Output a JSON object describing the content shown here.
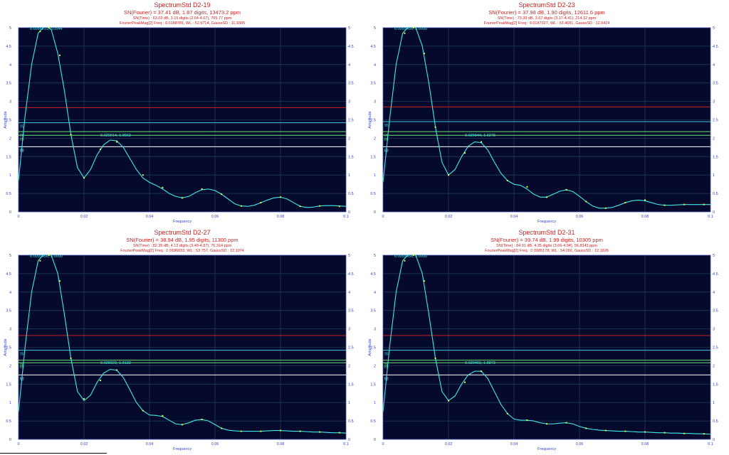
{
  "colors": {
    "plot_bg": "#050a2c",
    "grid": "#1f3a5a",
    "curve": "#40e8e8",
    "marker": "#d8ff40",
    "red_line": "#cc2222",
    "cyan_line": "#40c8e0",
    "green_line": "#70e070",
    "white_line": "#ffffff",
    "axis_text": "#3344cc",
    "title_text": "#cc2222"
  },
  "chart_data": [
    {
      "type": "line",
      "title": "SpectrumStd D2-19",
      "subtitle1": "SN(Fourier) = 37.41 dB, 1.87 digits, 13473.2 ppm",
      "subtitle2": "SN(Time) : 63.03 dB, 3.15 digits (2.64-4.07), 705.77 ppm",
      "subtitle3": "FourierPeakMag[2] Freq : 0.0188781, WL : 52.9714, GaussSD : 11.9305",
      "xlabel": "Frequency",
      "ylabel": "Amplitude",
      "xlim": [
        0,
        0.1
      ],
      "ylim": [
        0,
        5
      ],
      "x_ticks": [
        "0",
        "0.02",
        "0.04",
        "0.06",
        "0.08",
        "0.1"
      ],
      "y_ticks": [
        "0",
        "0.5",
        "1",
        "1.5",
        "2",
        "2.5",
        "3",
        "3.5",
        "4",
        "4.5",
        "5"
      ],
      "peak_label": "0.0066211, 5.0544",
      "second_peak_label": "0.029014, 1.9563",
      "hlines": [
        {
          "y": 2.83,
          "color": "red",
          "tag": ""
        },
        {
          "y": 2.42,
          "color": "cyan",
          "tag": "95"
        },
        {
          "y": 2.18,
          "color": "green",
          "tag": "90"
        },
        {
          "y": 2.08,
          "color": "green",
          "tag": "85"
        },
        {
          "y": 1.77,
          "color": "white",
          "tag": "50"
        }
      ],
      "x": [
        0,
        0.002,
        0.004,
        0.006,
        0.008,
        0.01,
        0.012,
        0.014,
        0.016,
        0.018,
        0.02,
        0.022,
        0.024,
        0.026,
        0.028,
        0.03,
        0.032,
        0.034,
        0.036,
        0.038,
        0.04,
        0.042,
        0.044,
        0.046,
        0.048,
        0.05,
        0.052,
        0.054,
        0.056,
        0.058,
        0.06,
        0.062,
        0.064,
        0.066,
        0.068,
        0.07,
        0.072,
        0.074,
        0.076,
        0.078,
        0.08,
        0.082,
        0.084,
        0.086,
        0.088,
        0.09,
        0.092,
        0.094,
        0.096,
        0.098,
        0.1
      ],
      "y": [
        0.85,
        2.6,
        4.0,
        4.85,
        5.05,
        4.95,
        4.3,
        3.3,
        2.1,
        1.2,
        0.92,
        1.15,
        1.55,
        1.82,
        1.95,
        1.93,
        1.75,
        1.45,
        1.15,
        0.92,
        0.8,
        0.72,
        0.62,
        0.5,
        0.42,
        0.38,
        0.42,
        0.52,
        0.6,
        0.62,
        0.58,
        0.48,
        0.35,
        0.22,
        0.16,
        0.15,
        0.18,
        0.25,
        0.32,
        0.38,
        0.4,
        0.35,
        0.25,
        0.15,
        0.12,
        0.13,
        0.16,
        0.17,
        0.17,
        0.16,
        0.15
      ],
      "markers_x": [
        0.0066,
        0.0093,
        0.0126,
        0.016,
        0.02,
        0.025,
        0.03,
        0.038,
        0.044,
        0.05,
        0.056,
        0.062,
        0.068,
        0.074,
        0.08,
        0.086,
        0.092,
        0.098
      ],
      "markers_y": [
        4.9,
        5.0,
        4.25,
        2.1,
        0.92,
        1.7,
        1.9,
        1.0,
        0.66,
        0.38,
        0.62,
        0.48,
        0.16,
        0.25,
        0.4,
        0.15,
        0.16,
        0.15
      ]
    },
    {
      "type": "line",
      "title": "SpectrumStd D2-23",
      "subtitle1": "SN(Fourier) = 37.98 dB, 1.90 digits, 12611.6 ppm",
      "subtitle2": "SN(Time) : 73.39 dB, 3.67 digits (3.17-4.41), 214.12 ppm",
      "subtitle3": "FourierPeakMag[2] Freq : 0.0187027, WL : 53.4681, GaussSD : 12.0424",
      "xlabel": "Frequency",
      "ylabel": "Amplitude",
      "xlim": [
        0,
        0.1
      ],
      "ylim": [
        0,
        5
      ],
      "x_ticks": [
        "0",
        "0.02",
        "0.04",
        "0.06",
        "0.08",
        "0.1"
      ],
      "y_ticks": [
        "0",
        "0.5",
        "1",
        "1.5",
        "2",
        "2.5",
        "3",
        "3.5",
        "4",
        "4.5",
        "5"
      ],
      "peak_label": "0.0093456, 5.0000",
      "second_peak_label": "0.029844, 1.9278",
      "hlines": [
        {
          "y": 2.85,
          "color": "red",
          "tag": ""
        },
        {
          "y": 2.45,
          "color": "cyan",
          "tag": "95"
        },
        {
          "y": 2.18,
          "color": "green",
          "tag": "90"
        },
        {
          "y": 2.08,
          "color": "green",
          "tag": "85"
        },
        {
          "y": 1.77,
          "color": "white",
          "tag": "50"
        }
      ],
      "x": [
        0,
        0.002,
        0.004,
        0.006,
        0.008,
        0.01,
        0.012,
        0.014,
        0.016,
        0.018,
        0.02,
        0.022,
        0.024,
        0.026,
        0.028,
        0.03,
        0.032,
        0.034,
        0.036,
        0.038,
        0.04,
        0.042,
        0.044,
        0.046,
        0.048,
        0.05,
        0.052,
        0.054,
        0.056,
        0.058,
        0.06,
        0.062,
        0.064,
        0.066,
        0.068,
        0.07,
        0.072,
        0.074,
        0.076,
        0.078,
        0.08,
        0.082,
        0.084,
        0.086,
        0.088,
        0.09,
        0.092,
        0.094,
        0.096,
        0.098,
        0.1
      ],
      "y": [
        0.8,
        2.5,
        4.0,
        4.85,
        5.05,
        5.0,
        4.5,
        3.5,
        2.3,
        1.35,
        1.0,
        1.15,
        1.5,
        1.78,
        1.9,
        1.88,
        1.68,
        1.35,
        1.05,
        0.85,
        0.75,
        0.72,
        0.62,
        0.48,
        0.4,
        0.4,
        0.48,
        0.56,
        0.6,
        0.55,
        0.42,
        0.28,
        0.16,
        0.1,
        0.1,
        0.12,
        0.18,
        0.25,
        0.3,
        0.32,
        0.3,
        0.25,
        0.2,
        0.18,
        0.18,
        0.19,
        0.2,
        0.2,
        0.2,
        0.2,
        0.2
      ],
      "markers_x": [
        0.0066,
        0.0093,
        0.0126,
        0.016,
        0.02,
        0.025,
        0.03,
        0.038,
        0.044,
        0.05,
        0.056,
        0.062,
        0.068,
        0.074,
        0.08,
        0.086,
        0.092,
        0.098
      ],
      "markers_y": [
        4.85,
        5.0,
        4.3,
        2.3,
        1.0,
        1.6,
        1.9,
        0.85,
        0.68,
        0.4,
        0.6,
        0.28,
        0.1,
        0.25,
        0.32,
        0.18,
        0.2,
        0.2
      ]
    },
    {
      "type": "line",
      "title": "SpectrumStd D2-27",
      "subtitle1": "SN(Fourier) = 38.94 dB, 1.95 digits, 11300 ppm",
      "subtitle2": "SN(Time) : 82.35 dB, 4.12 digits (3.49-4.87), 76.314 ppm",
      "subtitle3": "FourierPeakMag[2] Freq : 0.0186033, WL : 53.757, GaussSD : 12.1074",
      "xlabel": "Frequency",
      "ylabel": "Amplitude",
      "xlim": [
        0,
        0.1
      ],
      "ylim": [
        0,
        5
      ],
      "x_ticks": [
        "0",
        "0.02",
        "0.04",
        "0.06",
        "0.08",
        "0.1"
      ],
      "y_ticks": [
        "0",
        "0.5",
        "1",
        "1.5",
        "2",
        "2.5",
        "3",
        "3.5",
        "4",
        "4.5",
        "5"
      ],
      "peak_label": "0.0093456, 5.0000",
      "second_peak_label": "0.028023, 1.9133",
      "hlines": [
        {
          "y": 2.82,
          "color": "red",
          "tag": ""
        },
        {
          "y": 2.42,
          "color": "cyan",
          "tag": "95"
        },
        {
          "y": 2.15,
          "color": "green",
          "tag": "90"
        },
        {
          "y": 2.08,
          "color": "green",
          "tag": "85"
        },
        {
          "y": 1.75,
          "color": "white",
          "tag": "50"
        }
      ],
      "x": [
        0,
        0.002,
        0.004,
        0.006,
        0.008,
        0.01,
        0.012,
        0.014,
        0.016,
        0.018,
        0.02,
        0.022,
        0.024,
        0.026,
        0.028,
        0.03,
        0.032,
        0.034,
        0.036,
        0.038,
        0.04,
        0.042,
        0.044,
        0.046,
        0.048,
        0.05,
        0.052,
        0.054,
        0.056,
        0.058,
        0.06,
        0.062,
        0.064,
        0.066,
        0.068,
        0.07,
        0.072,
        0.074,
        0.076,
        0.078,
        0.08,
        0.082,
        0.084,
        0.086,
        0.088,
        0.09,
        0.092,
        0.094,
        0.096,
        0.098,
        0.1
      ],
      "y": [
        0.75,
        2.5,
        4.0,
        4.85,
        5.05,
        5.0,
        4.5,
        3.4,
        2.2,
        1.3,
        1.05,
        1.2,
        1.55,
        1.8,
        1.9,
        1.88,
        1.68,
        1.35,
        1.0,
        0.78,
        0.66,
        0.65,
        0.62,
        0.52,
        0.42,
        0.4,
        0.45,
        0.52,
        0.54,
        0.5,
        0.4,
        0.3,
        0.25,
        0.23,
        0.22,
        0.22,
        0.22,
        0.22,
        0.23,
        0.24,
        0.24,
        0.23,
        0.22,
        0.22,
        0.21,
        0.2,
        0.2,
        0.19,
        0.18,
        0.18,
        0.17
      ],
      "markers_x": [
        0.0066,
        0.0093,
        0.0126,
        0.016,
        0.02,
        0.025,
        0.03,
        0.038,
        0.044,
        0.05,
        0.056,
        0.062,
        0.068,
        0.074,
        0.08,
        0.086,
        0.092,
        0.098
      ],
      "markers_y": [
        4.85,
        5.0,
        4.3,
        2.2,
        1.1,
        1.6,
        1.88,
        0.78,
        0.64,
        0.4,
        0.54,
        0.3,
        0.22,
        0.22,
        0.24,
        0.22,
        0.2,
        0.18
      ]
    },
    {
      "type": "line",
      "title": "SpectrumStd D2-31",
      "subtitle1": "SN(Fourier) = 39.74 dB, 1.99 digits, 10305 ppm",
      "subtitle2": "SN(Time) : 84.91 dB, 4.35 digits (3.66-4.94), 56.8343 ppm",
      "subtitle3": "FourierPeakMag[2] Freq : 0.0185178, WL : 54.002, GaussSD : 12.1626",
      "xlabel": "Frequency",
      "ylabel": "Amplitude",
      "xlim": [
        0,
        0.1
      ],
      "ylim": [
        0,
        5
      ],
      "x_ticks": [
        "0",
        "0.02",
        "0.04",
        "0.06",
        "0.08",
        "0.1"
      ],
      "y_ticks": [
        "0",
        "0.5",
        "1",
        "1.5",
        "2",
        "2.5",
        "3",
        "3.5",
        "4",
        "4.5",
        "5"
      ],
      "peak_label": "0.0093456, 5.0000",
      "second_peak_label": "0.029466, 1.8873",
      "hlines": [
        {
          "y": 2.82,
          "color": "red",
          "tag": ""
        },
        {
          "y": 2.42,
          "color": "cyan",
          "tag": "95"
        },
        {
          "y": 2.15,
          "color": "green",
          "tag": "90"
        },
        {
          "y": 2.08,
          "color": "green",
          "tag": "85"
        },
        {
          "y": 1.75,
          "color": "white",
          "tag": "50"
        }
      ],
      "x": [
        0,
        0.002,
        0.004,
        0.006,
        0.008,
        0.01,
        0.012,
        0.014,
        0.016,
        0.018,
        0.02,
        0.022,
        0.024,
        0.026,
        0.028,
        0.03,
        0.032,
        0.034,
        0.036,
        0.038,
        0.04,
        0.042,
        0.044,
        0.046,
        0.048,
        0.05,
        0.052,
        0.054,
        0.056,
        0.058,
        0.06,
        0.062,
        0.064,
        0.066,
        0.068,
        0.07,
        0.072,
        0.074,
        0.076,
        0.078,
        0.08,
        0.082,
        0.084,
        0.086,
        0.088,
        0.09,
        0.092,
        0.094,
        0.096,
        0.098,
        0.1
      ],
      "y": [
        0.75,
        2.5,
        4.0,
        4.85,
        5.05,
        5.0,
        4.5,
        3.4,
        2.2,
        1.3,
        1.05,
        1.18,
        1.5,
        1.75,
        1.85,
        1.85,
        1.65,
        1.3,
        0.95,
        0.7,
        0.55,
        0.52,
        0.52,
        0.5,
        0.45,
        0.42,
        0.42,
        0.44,
        0.45,
        0.42,
        0.35,
        0.3,
        0.27,
        0.25,
        0.24,
        0.23,
        0.22,
        0.22,
        0.21,
        0.2,
        0.2,
        0.19,
        0.18,
        0.18,
        0.17,
        0.17,
        0.16,
        0.16,
        0.15,
        0.15,
        0.14
      ],
      "markers_x": [
        0.0066,
        0.0093,
        0.0126,
        0.016,
        0.02,
        0.025,
        0.03,
        0.038,
        0.044,
        0.05,
        0.056,
        0.062,
        0.068,
        0.074,
        0.08,
        0.086,
        0.092,
        0.098
      ],
      "markers_y": [
        4.85,
        5.0,
        4.3,
        2.2,
        1.05,
        1.55,
        1.85,
        0.7,
        0.52,
        0.42,
        0.45,
        0.3,
        0.24,
        0.22,
        0.2,
        0.18,
        0.16,
        0.15
      ]
    }
  ]
}
